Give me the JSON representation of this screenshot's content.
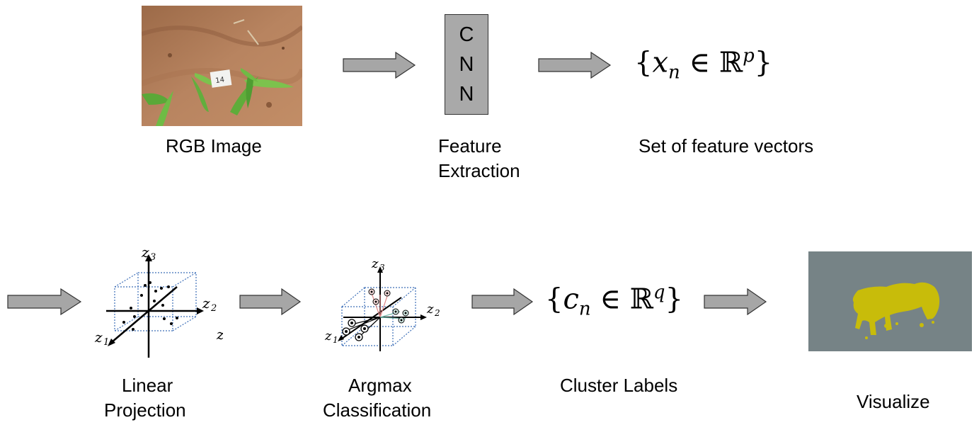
{
  "top_row": {
    "rgb_label": "RGB Image",
    "cnn_letters": [
      "C",
      "N",
      "N"
    ],
    "feature_label_line1": "Feature",
    "feature_label_line2": "Extraction",
    "feature_set_math": {
      "open": "{",
      "var": "x",
      "sub": "n",
      "in": "∈",
      "field": "ℝ",
      "sup": "p",
      "close": "}"
    },
    "feature_set_label": "Set of feature vectors",
    "tag_text": "14"
  },
  "bottom_row": {
    "projection_label_line1": "Linear",
    "projection_label_line2": "Projection",
    "argmax_label_line1": "Argmax",
    "argmax_label_line2": "Classification",
    "cluster_math": {
      "open": "{",
      "var": "c",
      "sub": "n",
      "in": "∈",
      "field": "ℝ",
      "sup": "q",
      "close": "}"
    },
    "cluster_label": "Cluster Labels",
    "visualize_label": "Visualize",
    "axis_z1": "z",
    "axis_z1_sub": "1",
    "axis_z2": "z",
    "axis_z2_sub": "2",
    "axis_z3": "z",
    "axis_z3_sub": "3",
    "axis_stray": "z"
  },
  "colors": {
    "arrow_fill": "#a6a6a6",
    "cnn_fill": "#a9a9a9",
    "soil": "#b07a55",
    "visual_bg": "#768386",
    "mask": "#c8bc0a",
    "cube_lines": "#3d6fb8"
  }
}
